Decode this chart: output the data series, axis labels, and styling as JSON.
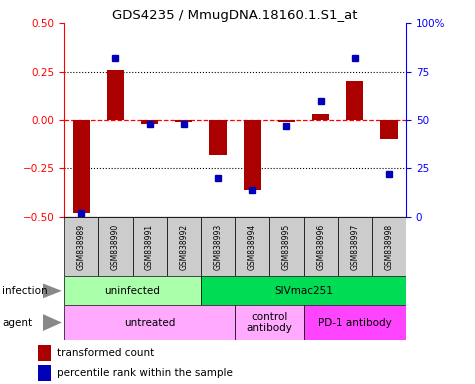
{
  "title": "GDS4235 / MmugDNA.18160.1.S1_at",
  "samples": [
    "GSM838989",
    "GSM838990",
    "GSM838991",
    "GSM838992",
    "GSM838993",
    "GSM838994",
    "GSM838995",
    "GSM838996",
    "GSM838997",
    "GSM838998"
  ],
  "transformed_count": [
    -0.48,
    0.26,
    -0.02,
    -0.01,
    -0.18,
    -0.36,
    -0.01,
    0.03,
    0.2,
    -0.1
  ],
  "percentile_rank": [
    2,
    82,
    48,
    48,
    20,
    14,
    47,
    60,
    82,
    22
  ],
  "bar_color": "#aa0000",
  "dot_color": "#0000bb",
  "left_ylim": [
    -0.5,
    0.5
  ],
  "right_ylim": [
    0,
    100
  ],
  "left_yticks": [
    -0.5,
    -0.25,
    0,
    0.25,
    0.5
  ],
  "right_yticks": [
    0,
    25,
    50,
    75,
    100
  ],
  "right_yticklabels": [
    "0",
    "25",
    "50",
    "75",
    "100%"
  ],
  "dotted_lines": [
    -0.25,
    0.25
  ],
  "infection_groups": [
    {
      "label": "uninfected",
      "start": 0,
      "end": 3,
      "color": "#aaffaa"
    },
    {
      "label": "SIVmac251",
      "start": 4,
      "end": 9,
      "color": "#00dd55"
    }
  ],
  "agent_groups": [
    {
      "label": "untreated",
      "start": 0,
      "end": 4,
      "color": "#ffaaff"
    },
    {
      "label": "control\nantibody",
      "start": 5,
      "end": 6,
      "color": "#ffaaff"
    },
    {
      "label": "PD-1 antibody",
      "start": 7,
      "end": 9,
      "color": "#ff44ff"
    }
  ],
  "sample_bg": "#cccccc"
}
